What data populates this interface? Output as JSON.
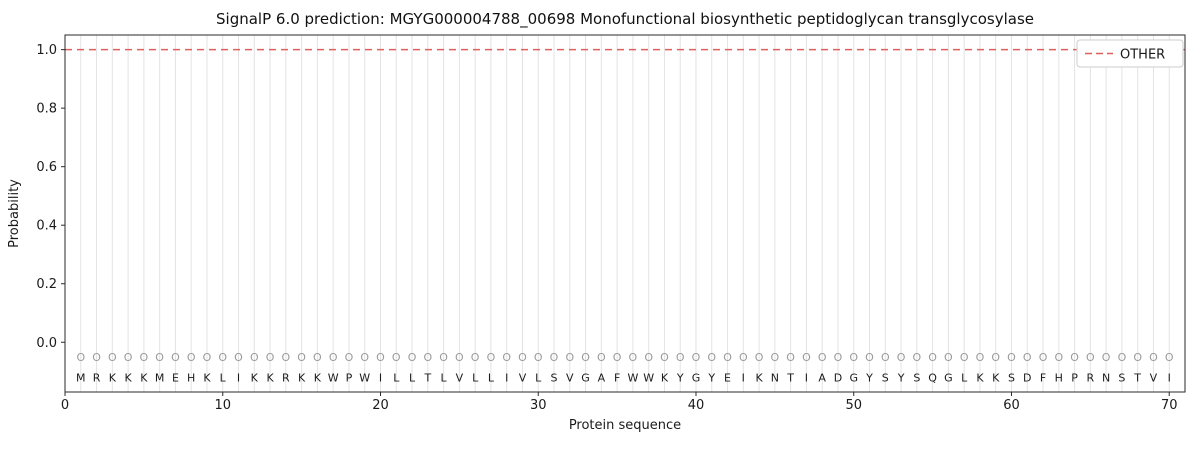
{
  "chart_data": {
    "type": "line",
    "title": "SignalP 6.0 prediction: MGYG000004788_00698 Monofunctional biosynthetic peptidoglycan transglycosylase",
    "xlabel": "Protein sequence",
    "ylabel": "Probability",
    "xlim": [
      0,
      71
    ],
    "ylim": [
      -0.17,
      1.05
    ],
    "xticks": [
      0,
      10,
      20,
      30,
      40,
      50,
      60,
      70
    ],
    "yticks": [
      0.0,
      0.2,
      0.4,
      0.6,
      0.8,
      1.0
    ],
    "grid": true,
    "legend": {
      "position": "upper right",
      "entries": [
        {
          "label": "OTHER",
          "color": "#e05f5f",
          "linestyle": "dashed"
        }
      ]
    },
    "series": [
      {
        "name": "OTHER",
        "linestyle": "dashed",
        "color": "#e05f5f",
        "constant_value": 1.0
      }
    ],
    "sequence": "MRKKKMEHKLIKKRKKWPWILLTLVLLIVLSVGAFWWKYGYEIKNTIADGYSYSQGLKKSDFHPRNSTVI",
    "predicted_labels": "OOOOOOOOOOOOOOOOOOOOOOOOOOOOOOOOOOOOOOOOOOOOOOOOOOOOOOOOOOOOOOOOOOOOOO"
  },
  "colors": {
    "grid": "#e3e3e3",
    "spine": "#2a2a2a",
    "tick_text": "#1a1a1a",
    "other_line": "#e05f5f",
    "sequence_text": "#1a1a1a",
    "marginal_text": "#9a9a9a",
    "legend_border": "#cccccc",
    "legend_bg": "#ffffff"
  }
}
